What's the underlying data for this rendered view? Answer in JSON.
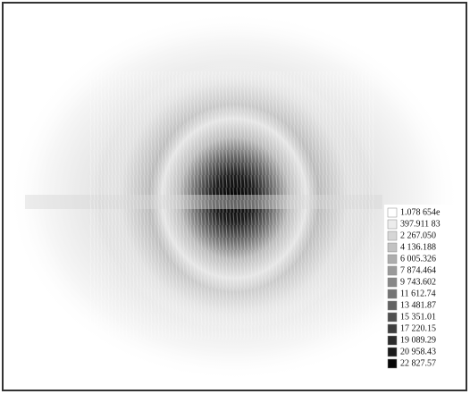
{
  "chart_data": {
    "type": "heatmap",
    "legend": [
      {
        "label": "1.078 654e",
        "color": "#ffffff"
      },
      {
        "label": "397.911 83",
        "color": "#ececec"
      },
      {
        "label": "2 267.050",
        "color": "#d6d6d6"
      },
      {
        "label": "4 136.188",
        "color": "#c2c2c2"
      },
      {
        "label": "6 005.326",
        "color": "#adadad"
      },
      {
        "label": "7 874.464",
        "color": "#9a9a9a"
      },
      {
        "label": "9 743.602",
        "color": "#878787"
      },
      {
        "label": "11 612.74",
        "color": "#747474"
      },
      {
        "label": "13 481.87",
        "color": "#626262"
      },
      {
        "label": "15 351.01",
        "color": "#505050"
      },
      {
        "label": "17 220.15",
        "color": "#3e3e3e"
      },
      {
        "label": "19 089.29",
        "color": "#2c2c2c"
      },
      {
        "label": "20 958.43",
        "color": "#1a1a1a"
      },
      {
        "label": "22 827.57",
        "color": "#060606"
      }
    ]
  }
}
